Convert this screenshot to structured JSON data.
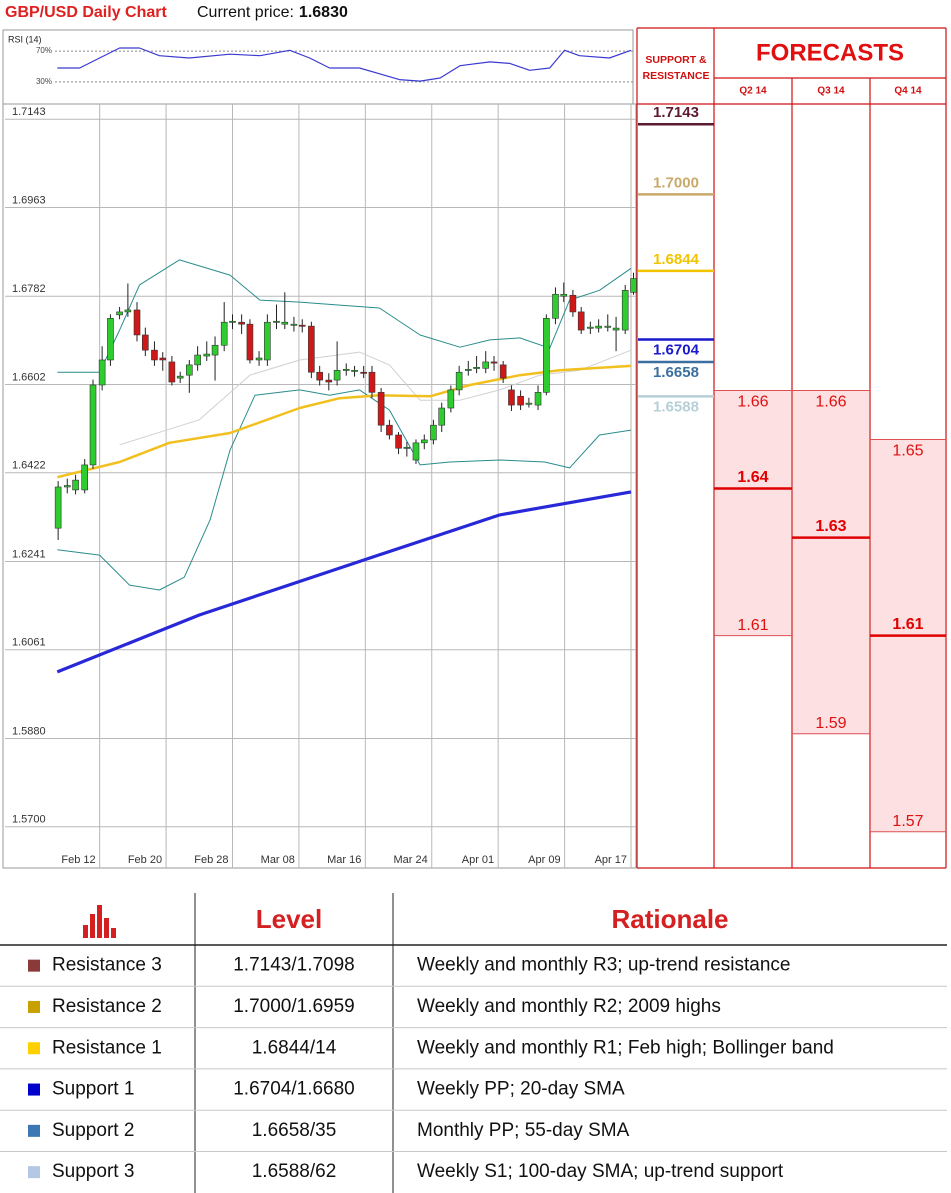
{
  "header": {
    "title": "GBP/USD Daily Chart",
    "price_label": "Current price:",
    "current_price": "1.6830"
  },
  "chart_data": [
    {
      "type": "candlestick",
      "xlim": [
        31.6,
        107.6
      ],
      "xticks": [
        {
          "value": 43,
          "label": "Feb 12"
        },
        {
          "value": 51,
          "label": "Feb 20"
        },
        {
          "value": 59,
          "label": "Feb 28"
        },
        {
          "value": 67,
          "label": "Mar 08"
        },
        {
          "value": 75,
          "label": "Mar 16"
        },
        {
          "value": 83,
          "label": "Mar 24"
        },
        {
          "value": 91,
          "label": "Apr 01"
        },
        {
          "value": 99,
          "label": "Apr 09"
        },
        {
          "value": 107,
          "label": "Apr 17"
        }
      ],
      "ylim": [
        1.5616,
        1.7174
      ],
      "yticks": [
        1.7143,
        1.6963,
        1.6782,
        1.6602,
        1.6422,
        1.6241,
        1.6061,
        {
          "value": 1.588,
          "label": "1.5880"
        },
        {
          "value": 1.57,
          "label": "1.5700"
        }
      ],
      "grid": true,
      "up_color": "#2ecc2e",
      "down_color": "#d01818",
      "x": [
        38,
        39.1,
        40.1,
        41.2,
        42.2,
        43.3,
        44.3,
        45.4,
        46.4,
        47.5,
        48.5,
        49.6,
        50.6,
        51.7,
        52.7,
        53.8,
        54.8,
        55.9,
        56.9,
        58,
        59,
        60.1,
        61.1,
        62.2,
        63.2,
        64.3,
        65.3,
        66.4,
        67.4,
        68.5,
        69.5,
        70.6,
        71.6,
        72.7,
        73.7,
        74.8,
        75.8,
        76.9,
        77.9,
        79,
        80,
        81.1,
        82.1,
        83.2,
        84.2,
        85.3,
        86.3,
        87.4,
        88.4,
        89.5,
        90.5,
        91.6,
        92.6,
        93.7,
        94.7,
        95.8,
        96.8,
        97.9,
        98.9,
        100,
        101,
        102.1,
        103.1,
        104.2,
        105.2,
        106.3,
        107.3
      ],
      "open": [
        1.6309,
        1.6393,
        1.6387,
        1.6387,
        1.6438,
        1.6601,
        1.6652,
        1.6744,
        1.675,
        1.6754,
        1.6703,
        1.6672,
        1.6656,
        1.6648,
        1.6615,
        1.6621,
        1.6642,
        1.666,
        1.6662,
        1.6682,
        1.6729,
        1.6729,
        1.6725,
        1.6652,
        1.6652,
        1.6729,
        1.6725,
        1.6723,
        1.6723,
        1.6721,
        1.6627,
        1.6611,
        1.6611,
        1.6631,
        1.6629,
        1.6627,
        1.6627,
        1.6586,
        1.6519,
        1.6499,
        1.6472,
        1.6448,
        1.6483,
        1.6489,
        1.6519,
        1.6554,
        1.6591,
        1.6631,
        1.6635,
        1.6635,
        1.6648,
        1.6642,
        1.6591,
        1.6578,
        1.6562,
        1.656,
        1.6586,
        1.6737,
        1.6782,
        1.6784,
        1.675,
        1.6717,
        1.6717,
        1.6719,
        1.6713,
        1.6713,
        1.679
      ],
      "high": [
        1.6405,
        1.641,
        1.6418,
        1.645,
        1.6612,
        1.668,
        1.6745,
        1.676,
        1.6808,
        1.677,
        1.6718,
        1.669,
        1.6668,
        1.666,
        1.6628,
        1.6652,
        1.668,
        1.669,
        1.67,
        1.677,
        1.6745,
        1.6745,
        1.6735,
        1.667,
        1.6745,
        1.6765,
        1.679,
        1.674,
        1.6735,
        1.673,
        1.664,
        1.6625,
        1.669,
        1.6645,
        1.664,
        1.664,
        1.664,
        1.6595,
        1.653,
        1.6505,
        1.6485,
        1.649,
        1.65,
        1.653,
        1.6565,
        1.66,
        1.664,
        1.665,
        1.666,
        1.667,
        1.666,
        1.665,
        1.66,
        1.659,
        1.6575,
        1.66,
        1.6745,
        1.68,
        1.681,
        1.6795,
        1.676,
        1.673,
        1.6735,
        1.6745,
        1.674,
        1.6805,
        1.683
      ],
      "low": [
        1.6285,
        1.638,
        1.6378,
        1.638,
        1.643,
        1.659,
        1.664,
        1.6735,
        1.674,
        1.669,
        1.666,
        1.664,
        1.663,
        1.66,
        1.6605,
        1.6585,
        1.663,
        1.665,
        1.661,
        1.667,
        1.6715,
        1.6705,
        1.6645,
        1.664,
        1.664,
        1.6715,
        1.6715,
        1.671,
        1.6708,
        1.6615,
        1.66,
        1.659,
        1.66,
        1.662,
        1.6618,
        1.6615,
        1.6575,
        1.6505,
        1.649,
        1.646,
        1.6455,
        1.644,
        1.647,
        1.648,
        1.6505,
        1.6545,
        1.658,
        1.662,
        1.6625,
        1.6625,
        1.663,
        1.6605,
        1.6548,
        1.655,
        1.6555,
        1.655,
        1.658,
        1.6725,
        1.677,
        1.674,
        1.6705,
        1.6705,
        1.6708,
        1.671,
        1.667,
        1.6705,
        1.6785
      ],
      "close": [
        1.6393,
        1.6396,
        1.6407,
        1.6438,
        1.6601,
        1.6652,
        1.6737,
        1.675,
        1.6754,
        1.6703,
        1.6672,
        1.6652,
        1.6652,
        1.6607,
        1.6619,
        1.6642,
        1.6662,
        1.6664,
        1.6682,
        1.6729,
        1.6731,
        1.6725,
        1.6652,
        1.6656,
        1.6729,
        1.6731,
        1.6729,
        1.6725,
        1.6721,
        1.6627,
        1.6611,
        1.6607,
        1.6631,
        1.6633,
        1.6631,
        1.6625,
        1.6586,
        1.6519,
        1.6499,
        1.6472,
        1.6474,
        1.6483,
        1.6489,
        1.6519,
        1.6554,
        1.6591,
        1.6627,
        1.6633,
        1.6637,
        1.6648,
        1.6646,
        1.6615,
        1.656,
        1.656,
        1.6564,
        1.6586,
        1.6737,
        1.6786,
        1.6786,
        1.675,
        1.6713,
        1.6719,
        1.6721,
        1.6721,
        1.6717,
        1.6794,
        1.6818
      ],
      "series": [
        {
          "color": "#d0d0d0",
          "x": [
            45.4,
            55,
            61.1,
            67.1,
            74.3,
            77.9,
            81.6,
            86.4,
            91.2,
            96,
            100.8,
            107
          ],
          "values": [
            1.6479,
            1.653,
            1.6621,
            1.6652,
            1.6668,
            1.6642,
            1.657,
            1.657,
            1.6591,
            1.6621,
            1.6631,
            1.6672
          ]
        },
        {
          "color": "#2a8c8c",
          "x": [
            37.9,
            43,
            45.4,
            47.8,
            52.6,
            58.7,
            62.3,
            67.1,
            71.9,
            76.7,
            81.6,
            86.4,
            90,
            93.6,
            97.2,
            99.6,
            103.2,
            107
          ],
          "values": [
            1.6627,
            1.6627,
            1.6713,
            1.6805,
            1.6856,
            1.6825,
            1.6774,
            1.677,
            1.6764,
            1.6758,
            1.6703,
            1.6678,
            1.6693,
            1.6697,
            1.6676,
            1.6774,
            1.6794,
            1.6839
          ]
        },
        {
          "color": "#2a8c8c",
          "x": [
            37.9,
            43,
            46.6,
            50.2,
            53.2,
            56.3,
            58.7,
            61.7,
            67.1,
            70.7,
            74.3,
            77.9,
            81.6,
            85.2,
            91.2,
            96.6,
            99.6,
            103.2,
            107
          ],
          "values": [
            1.6265,
            1.6254,
            1.6193,
            1.6183,
            1.6209,
            1.6326,
            1.6468,
            1.658,
            1.6591,
            1.658,
            1.6591,
            1.655,
            1.6438,
            1.6444,
            1.6448,
            1.6444,
            1.6432,
            1.6499,
            1.6509
          ]
        },
        {
          "color": "#f2c01e",
          "x": [
            37.9,
            45.4,
            51.4,
            58.7,
            67.1,
            71.9,
            76.7,
            82.8,
            87.6,
            93.6,
            98.4,
            107
          ],
          "values": [
            1.6413,
            1.6444,
            1.6483,
            1.6503,
            1.6554,
            1.6574,
            1.658,
            1.6578,
            1.6601,
            1.6621,
            1.6631,
            1.664
          ]
        },
        {
          "color": "#2828d8",
          "x": [
            37.9,
            55,
            75.5,
            91.2,
            107
          ],
          "values": [
            1.6016,
            1.6132,
            1.6248,
            1.6336,
            1.6383
          ]
        }
      ]
    },
    {
      "type": "line",
      "title": "RSI (14)",
      "xlim": [
        31.6,
        107.6
      ],
      "ylim": [
        0,
        100
      ],
      "yticks": [
        {
          "value": 70,
          "label": "70%"
        },
        {
          "value": 30,
          "label": "30%"
        }
      ],
      "series": [
        {
          "color": "#3a3ad0",
          "x": [
            37.9,
            40.6,
            43,
            45.4,
            47.8,
            50.2,
            53.8,
            58.7,
            62.3,
            65.9,
            68.3,
            70.7,
            74.3,
            79.1,
            81.6,
            84,
            86.4,
            90,
            92.4,
            94.8,
            97.2,
            99,
            100.8,
            104.4,
            107
          ],
          "values": [
            48,
            48,
            61,
            74,
            74,
            64,
            61,
            66,
            64,
            71,
            61,
            48,
            48,
            33,
            31,
            35,
            51,
            56,
            54,
            45,
            48,
            71,
            64,
            61,
            71
          ]
        }
      ]
    }
  ],
  "levels": {
    "title_lines": [
      "SUPPORT &",
      "RESISTANCE"
    ],
    "values": [
      1.7143,
      1.7,
      1.6844,
      1.6704,
      1.6658,
      1.6588
    ],
    "value_labels": [
      "1.7143",
      "1.7000",
      "1.6844",
      "1.6704",
      "1.6658",
      "1.6588"
    ],
    "colors": [
      "#5c1a33",
      "#c9a96b",
      "#f2c400",
      "#1a1acc",
      "#3a6fa0",
      "#b6d0d8"
    ]
  },
  "forecasts": {
    "title": "FORECASTS",
    "columns": [
      {
        "label": "Q2 14",
        "high": 1.66,
        "mid": 1.64,
        "low": 1.61
      },
      {
        "label": "Q3 14",
        "high": 1.66,
        "mid": 1.63,
        "low": 1.59
      },
      {
        "label": "Q4 14",
        "high": 1.65,
        "mid": 1.61,
        "low": 1.57
      }
    ]
  },
  "table": {
    "columns": [
      "Level",
      "Rationale"
    ],
    "rows": [
      {
        "name": "Resistance 3",
        "level": "1.7143/1.7098",
        "rationale": "Weekly and monthly R3; up-trend resistance",
        "color": "#8b3a3a"
      },
      {
        "name": "Resistance 2",
        "level": "1.7000/1.6959",
        "rationale": "Weekly and monthly R2; 2009 highs",
        "color": "#c8a000"
      },
      {
        "name": "Resistance 1",
        "level": "1.6844/14",
        "rationale": "Weekly and monthly R1; Feb high; Bollinger band",
        "color": "#ffd000"
      },
      {
        "name": "Support 1",
        "level": "1.6704/1.6680",
        "rationale": "Weekly PP; 20-day SMA",
        "color": "#0000cc"
      },
      {
        "name": "Support 2",
        "level": "1.6658/35",
        "rationale": "Monthly PP; 55-day SMA",
        "color": "#3c78b4"
      },
      {
        "name": "Support 3",
        "level": "1.6588/62",
        "rationale": "Weekly S1; 100-day SMA; up-trend support",
        "color": "#b4c8e6"
      }
    ]
  }
}
